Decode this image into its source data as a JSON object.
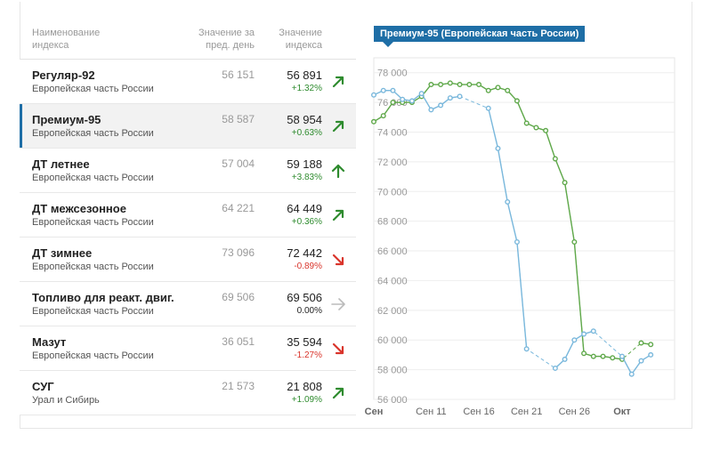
{
  "table": {
    "header": {
      "name": "Наименование индекса",
      "prev": "Значение за пред. день",
      "cur": "Значение индекса"
    },
    "rows": [
      {
        "name": "Регуляр-92",
        "region": "Европейская часть России",
        "prev": "56 151",
        "cur": "56 891",
        "change": "+1.32%",
        "trend": "up"
      },
      {
        "name": "Премиум-95",
        "region": "Европейская часть России",
        "prev": "58 587",
        "cur": "58 954",
        "change": "+0.63%",
        "trend": "up"
      },
      {
        "name": "ДТ летнее",
        "region": "Европейская часть России",
        "prev": "57 004",
        "cur": "59 188",
        "change": "+3.83%",
        "trend": "strong-up"
      },
      {
        "name": "ДТ межсезонное",
        "region": "Европейская часть России",
        "prev": "64 221",
        "cur": "64 449",
        "change": "+0.36%",
        "trend": "up"
      },
      {
        "name": "ДТ зимнее",
        "region": "Европейская часть России",
        "prev": "73 096",
        "cur": "72 442",
        "change": "-0.89%",
        "trend": "down"
      },
      {
        "name": "Топливо для реакт. двиг.",
        "region": "Европейская часть России",
        "prev": "69 506",
        "cur": "69 506",
        "change": "0.00%",
        "trend": "flat"
      },
      {
        "name": "Мазут",
        "region": "Европейская часть России",
        "prev": "36 051",
        "cur": "35 594",
        "change": "-1.27%",
        "trend": "down"
      },
      {
        "name": "СУГ",
        "region": "Урал и Сибирь",
        "prev": "21 573",
        "cur": "21 808",
        "change": "+1.09%",
        "trend": "up"
      }
    ]
  },
  "colors": {
    "up": "#2e8b2e",
    "down": "#d9342b",
    "flat": "#bbbbbb",
    "accent": "#1e6ea6",
    "green_series": "#5fa84a",
    "blue_series": "#7ab8dc"
  },
  "chart_data": {
    "type": "line",
    "title": "Премиум-95 (Европейская часть России)",
    "ylim": [
      56000,
      79000
    ],
    "yticks": [
      56000,
      58000,
      60000,
      62000,
      64000,
      66000,
      68000,
      70000,
      72000,
      74000,
      76000,
      78000
    ],
    "ytick_labels": [
      "56 000",
      "58 000",
      "60 000",
      "62 000",
      "64 000",
      "66 000",
      "68 000",
      "70 000",
      "72 000",
      "74 000",
      "76 000",
      "78 000"
    ],
    "xlim": [
      5,
      36.5
    ],
    "xticks": [
      5,
      11,
      16,
      21,
      26,
      31
    ],
    "xtick_labels": [
      "Сен",
      "Сен 11",
      "Сен 16",
      "Сен 21",
      "Сен 26",
      "Окт"
    ],
    "series": [
      {
        "name": "green",
        "color": "#5fa84a",
        "x": [
          5,
          6,
          7,
          8,
          9,
          10,
          11,
          12,
          13,
          14,
          15,
          16,
          17,
          18,
          19,
          20,
          21,
          22,
          23,
          24,
          25,
          26,
          27,
          28,
          29,
          30,
          31,
          32,
          33,
          34
        ],
        "y": [
          74700,
          75100,
          76000,
          76000,
          76000,
          76400,
          77200,
          77200,
          77300,
          77200,
          77200,
          77200,
          76800,
          77000,
          76800,
          76100,
          74600,
          74300,
          74100,
          72200,
          70600,
          66600,
          59100,
          58900,
          58900,
          58800,
          58700,
          null,
          59800,
          59700
        ],
        "gaps_dashed": true
      },
      {
        "name": "blue",
        "color": "#7ab8dc",
        "x": [
          5,
          6,
          7,
          8,
          9,
          10,
          11,
          12,
          13,
          14,
          15,
          16,
          17,
          18,
          19,
          20,
          21,
          22,
          23,
          24,
          25,
          26,
          27,
          28,
          29,
          30,
          31,
          32,
          33,
          34
        ],
        "y": [
          76500,
          76800,
          76800,
          76200,
          76100,
          76600,
          75500,
          75800,
          76300,
          76400,
          null,
          null,
          75600,
          72900,
          69300,
          66600,
          59400,
          null,
          null,
          58100,
          58700,
          60000,
          60400,
          60600,
          null,
          null,
          58900,
          57700,
          58600,
          59000
        ],
        "gaps_dashed": true
      }
    ]
  }
}
